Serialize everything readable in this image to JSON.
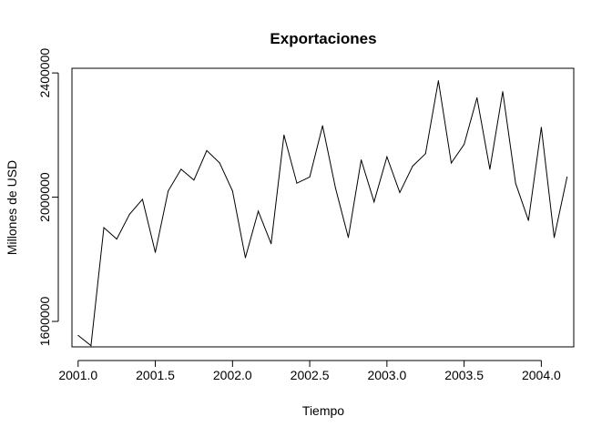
{
  "chart_data": {
    "type": "line",
    "title": "Exportaciones",
    "xlabel": "Tiempo",
    "ylabel": "Millones de USD",
    "xlim": [
      2001.0,
      2004.1667
    ],
    "ylim": [
      1520000,
      2400000
    ],
    "xticks": [
      2001.0,
      2001.5,
      2002.0,
      2002.5,
      2003.0,
      2003.5,
      2004.0
    ],
    "xtick_labels": [
      "2001.0",
      "2001.5",
      "2002.0",
      "2002.5",
      "2003.0",
      "2003.5",
      "2004.0"
    ],
    "yticks": [
      1600000,
      2000000,
      2400000
    ],
    "ytick_labels": [
      "1600000",
      "2000000",
      "2400000"
    ],
    "grid": false,
    "x": [
      2001.0,
      2001.0833,
      2001.1667,
      2001.25,
      2001.3333,
      2001.4167,
      2001.5,
      2001.5833,
      2001.6667,
      2001.75,
      2001.8333,
      2001.9167,
      2002.0,
      2002.0833,
      2002.1667,
      2002.25,
      2002.3333,
      2002.4167,
      2002.5,
      2002.5833,
      2002.6667,
      2002.75,
      2002.8333,
      2002.9167,
      2003.0,
      2003.0833,
      2003.1667,
      2003.25,
      2003.3333,
      2003.4167,
      2003.5,
      2003.5833,
      2003.6667,
      2003.75,
      2003.8333,
      2003.9167,
      2004.0,
      2004.0833,
      2004.1667
    ],
    "series": [
      {
        "values": [
          1555000,
          1522000,
          1902000,
          1865000,
          1945000,
          1993000,
          1822000,
          2020000,
          2090000,
          2055000,
          2150000,
          2110000,
          2020000,
          1805000,
          1955000,
          1850000,
          2200000,
          2045000,
          2065000,
          2230000,
          2030000,
          1870000,
          2120000,
          1985000,
          2130000,
          2015000,
          2100000,
          2140000,
          2375000,
          2110000,
          2170000,
          2320000,
          2090000,
          2340000,
          2045000,
          1925000,
          2225000,
          1870000,
          2065000
        ]
      }
    ]
  }
}
